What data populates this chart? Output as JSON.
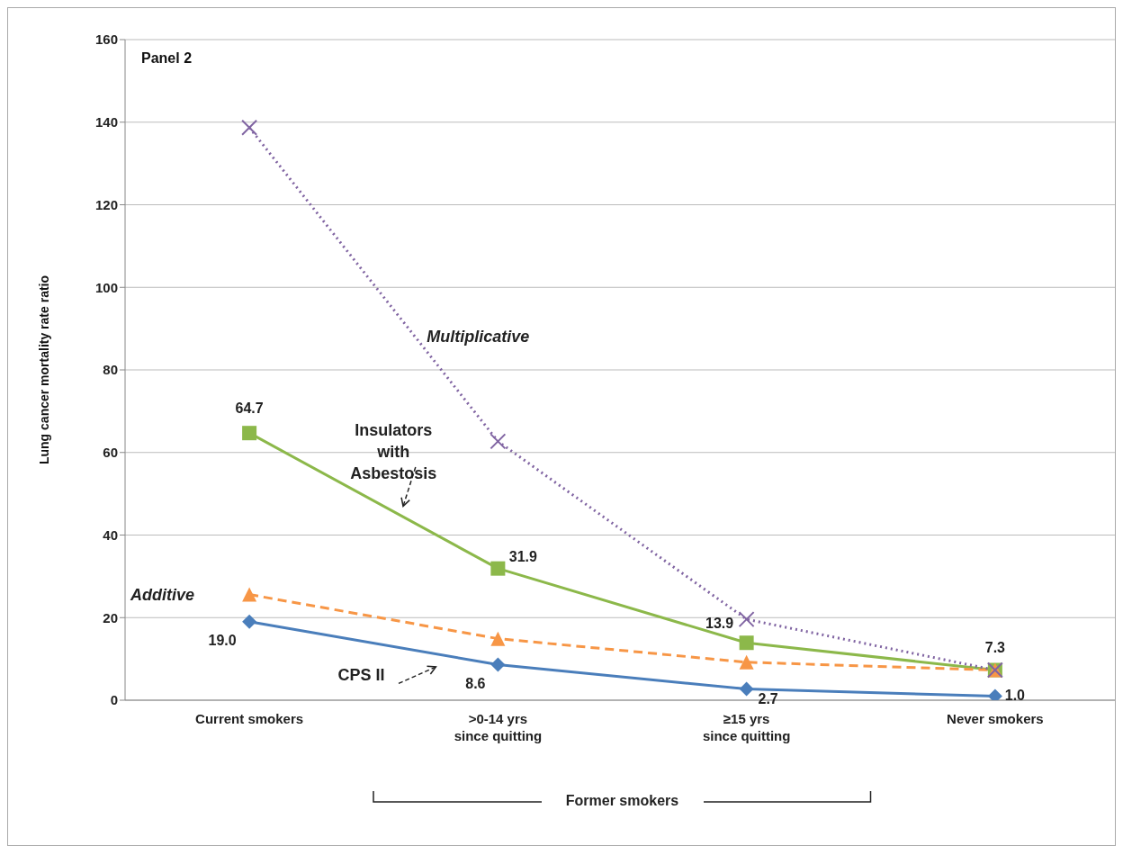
{
  "chart_data": {
    "type": "line",
    "categories": [
      "Current smokers",
      ">0-14 yrs\nsince quitting",
      "≥15 yrs\nsince quitting",
      "Never smokers"
    ],
    "ylabel": "Lung cancer mortality rate ratio",
    "ylim": [
      0,
      160
    ],
    "yticks": [
      0,
      20,
      40,
      60,
      80,
      100,
      120,
      140,
      160
    ],
    "grid": "y",
    "legend": false,
    "annotations": [
      "Panel 2",
      "Former smokers"
    ],
    "series": [
      {
        "name": "CPS II",
        "color": "#4a7ebb",
        "values": [
          19.0,
          8.6,
          2.7,
          1.0
        ],
        "marker": "diamond",
        "line_style": "solid",
        "value_labels": [
          "19.0",
          "8.6",
          "2.7",
          "1.0"
        ]
      },
      {
        "name": "Insulators with Asbestosis",
        "color": "#8cb84a",
        "values": [
          64.7,
          31.9,
          13.9,
          7.3
        ],
        "marker": "square",
        "line_style": "solid",
        "value_labels": [
          "64.7",
          "31.9",
          "13.9",
          "7.3"
        ]
      },
      {
        "name": "Additive",
        "color": "#f79646",
        "values": [
          25.6,
          14.9,
          9.2,
          7.3
        ],
        "marker": "triangle",
        "line_style": "dashed"
      },
      {
        "name": "Multiplicative",
        "color": "#8064a2",
        "values": [
          138.7,
          62.7,
          19.6,
          7.3
        ],
        "marker": "cross",
        "line_style": "dotted"
      }
    ]
  }
}
